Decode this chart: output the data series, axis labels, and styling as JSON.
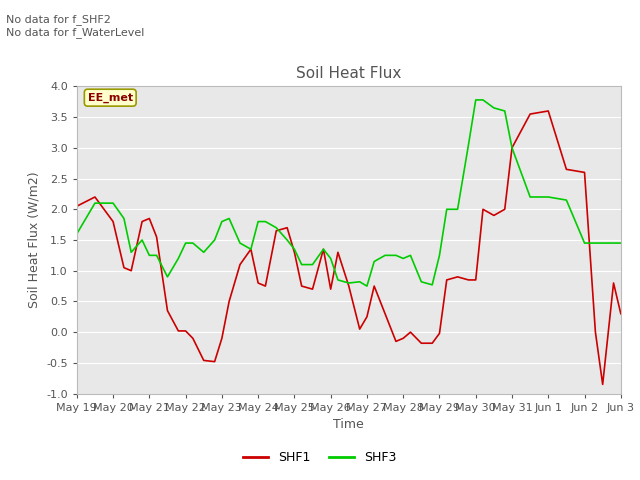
{
  "title": "Soil Heat Flux",
  "ylabel": "Soil Heat Flux (W/m2)",
  "xlabel": "Time",
  "ylim": [
    -1.0,
    4.0
  ],
  "yticks": [
    -1.0,
    -0.5,
    0.0,
    0.5,
    1.0,
    1.5,
    2.0,
    2.5,
    3.0,
    3.5,
    4.0
  ],
  "bg_color": "#e8e8e8",
  "fig_color": "#ffffff",
  "grid_color": "#ffffff",
  "annotation_text": "No data for f_SHF2\nNo data for f_WaterLevel",
  "box_label": "EE_met",
  "box_facecolor": "#ffffcc",
  "box_edgecolor": "#999900",
  "line1_color": "#cc0000",
  "line2_color": "#00cc00",
  "line1_label": "SHF1",
  "line2_label": "SHF3",
  "x_ticklabels": [
    "May 19",
    "May 20",
    "May 21",
    "May 22",
    "May 23",
    "May 24",
    "May 25",
    "May 26",
    "May 27",
    "May 28",
    "May 29",
    "May 30",
    "May 31",
    "Jun 1",
    "Jun 2",
    "Jun 3"
  ],
  "shf1_x": [
    0,
    0.5,
    1,
    1.3,
    1.5,
    1.8,
    2,
    2.2,
    2.5,
    2.8,
    3,
    3.2,
    3.5,
    3.8,
    4,
    4.2,
    4.5,
    4.8,
    5,
    5.2,
    5.5,
    5.8,
    6,
    6.2,
    6.5,
    6.8,
    7,
    7.2,
    7.5,
    7.8,
    8,
    8.2,
    8.5,
    8.8,
    9,
    9.2,
    9.5,
    9.8,
    10,
    10.2,
    10.5,
    10.8,
    11,
    11.2,
    11.5,
    11.8,
    12,
    12.5,
    13,
    13.5,
    14,
    14.3,
    14.5,
    14.8,
    15
  ],
  "shf1_y": [
    2.05,
    2.2,
    1.8,
    1.05,
    1.0,
    1.8,
    1.85,
    1.55,
    0.35,
    0.02,
    0.02,
    -0.1,
    -0.46,
    -0.48,
    -0.1,
    0.5,
    1.1,
    1.35,
    0.8,
    0.75,
    1.65,
    1.7,
    1.3,
    0.75,
    0.7,
    1.35,
    0.7,
    1.3,
    0.75,
    0.05,
    0.25,
    0.75,
    0.3,
    -0.15,
    -0.1,
    0.0,
    -0.18,
    -0.18,
    -0.02,
    0.85,
    0.9,
    0.85,
    0.85,
    2.0,
    1.9,
    2.0,
    3.0,
    3.55,
    3.6,
    2.65,
    2.6,
    0.0,
    -0.85,
    0.8,
    0.3
  ],
  "shf3_x": [
    0,
    0.5,
    1,
    1.3,
    1.5,
    1.8,
    2,
    2.2,
    2.5,
    2.8,
    3,
    3.2,
    3.5,
    3.8,
    4,
    4.2,
    4.5,
    4.8,
    5,
    5.2,
    5.5,
    5.8,
    6,
    6.2,
    6.5,
    6.8,
    7,
    7.2,
    7.5,
    7.8,
    8,
    8.2,
    8.5,
    8.8,
    9,
    9.2,
    9.5,
    9.8,
    10,
    10.2,
    10.5,
    10.8,
    11,
    11.2,
    11.5,
    11.8,
    12,
    12.5,
    13,
    13.5,
    14,
    14.3,
    14.5,
    14.8,
    15
  ],
  "shf3_y": [
    1.6,
    2.1,
    2.1,
    1.85,
    1.3,
    1.5,
    1.25,
    1.25,
    0.9,
    1.2,
    1.45,
    1.45,
    1.3,
    1.5,
    1.8,
    1.85,
    1.45,
    1.35,
    1.8,
    1.8,
    1.7,
    1.5,
    1.35,
    1.1,
    1.1,
    1.35,
    1.2,
    0.85,
    0.8,
    0.82,
    0.75,
    1.15,
    1.25,
    1.25,
    1.2,
    1.25,
    0.82,
    0.77,
    1.25,
    2.0,
    2.0,
    3.05,
    3.78,
    3.78,
    3.65,
    3.6,
    3.0,
    2.2,
    2.2,
    2.15,
    1.45,
    1.45,
    1.45,
    1.45,
    1.45
  ],
  "title_fontsize": 11,
  "label_fontsize": 9,
  "tick_fontsize": 8,
  "legend_fontsize": 9
}
